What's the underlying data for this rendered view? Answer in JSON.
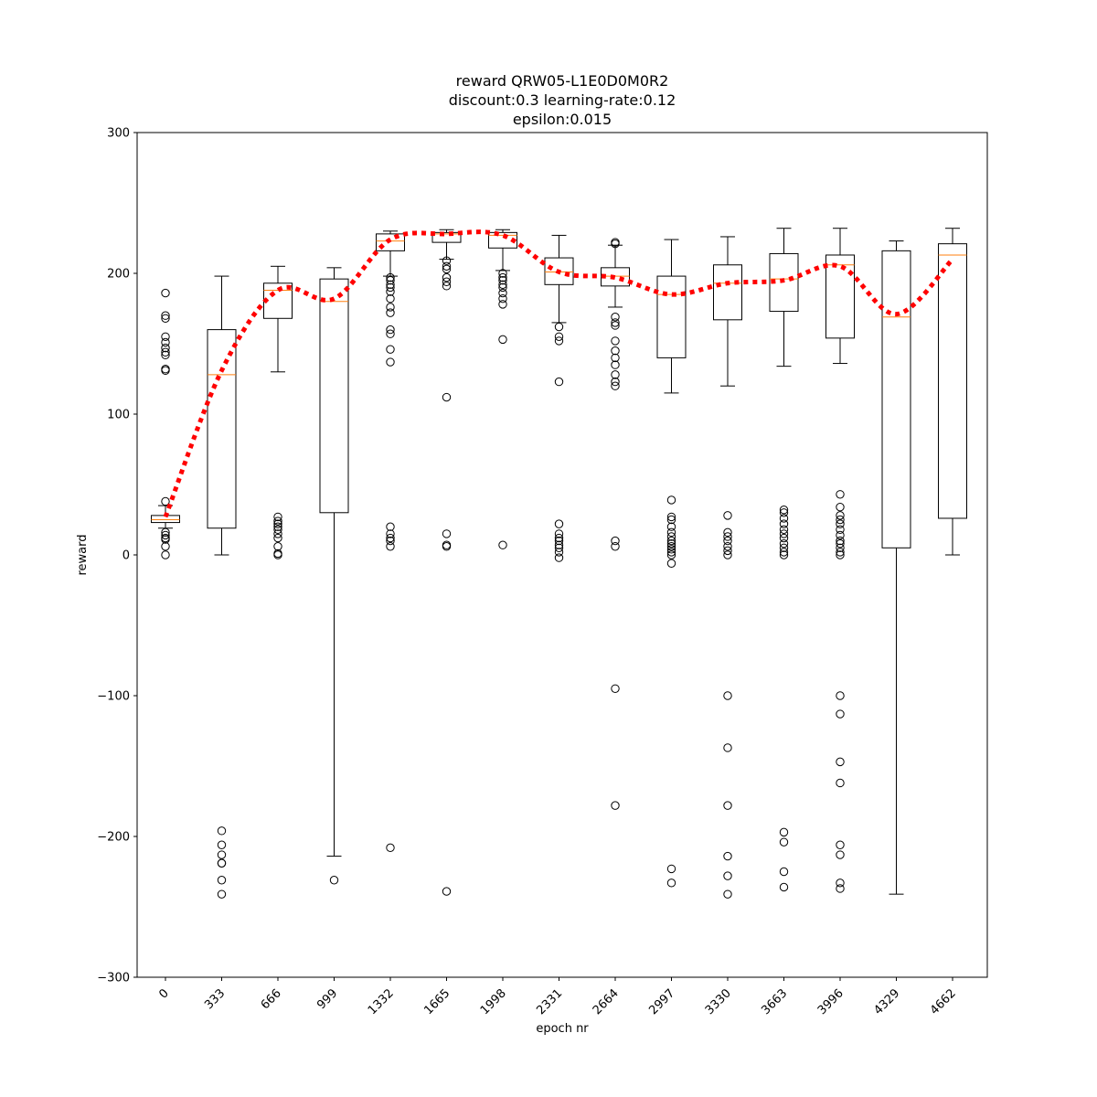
{
  "chart_data": {
    "type": "box",
    "title": [
      "reward QRW05-L1E0D0M0R2",
      "discount:0.3 learning-rate:0.12",
      "epsilon:0.015"
    ],
    "xlabel": "epoch nr",
    "ylabel": "reward",
    "ylim": [
      -300,
      300
    ],
    "yticks": [
      -300,
      -200,
      -100,
      0,
      100,
      200,
      300
    ],
    "yticklabels": [
      "−300",
      "−200",
      "−100",
      "0",
      "100",
      "200",
      "300"
    ],
    "categories": [
      "0",
      "333",
      "666",
      "999",
      "1332",
      "1665",
      "1998",
      "2331",
      "2664",
      "2997",
      "3330",
      "3663",
      "3996",
      "4329",
      "4662"
    ],
    "boxes": [
      {
        "whisker_low": 19,
        "q1": 23,
        "median": 25,
        "q3": 28,
        "whisker_high": 35,
        "outliers": [
          186,
          170,
          168,
          155,
          151,
          147,
          144,
          142,
          132,
          131,
          38,
          16,
          14,
          12,
          11,
          6,
          0
        ]
      },
      {
        "whisker_low": 0,
        "q1": 19,
        "median": 128,
        "q3": 160,
        "whisker_high": 198,
        "outliers": [
          -196,
          -206,
          -213,
          -219,
          -219,
          -231,
          -241
        ]
      },
      {
        "whisker_low": 130,
        "q1": 168,
        "median": 188,
        "q3": 193,
        "whisker_high": 205,
        "outliers": [
          27,
          24,
          22,
          20,
          18,
          15,
          12,
          6,
          1,
          0
        ]
      },
      {
        "whisker_low": -214,
        "q1": 30,
        "median": 180,
        "q3": 196,
        "whisker_high": 204,
        "outliers": [
          -231
        ]
      },
      {
        "whisker_low": 198,
        "q1": 216,
        "median": 223,
        "q3": 228,
        "whisker_high": 230,
        "outliers": [
          197,
          195,
          192,
          190,
          187,
          182,
          176,
          172,
          160,
          157,
          146,
          137,
          20,
          15,
          12,
          10,
          6,
          -208
        ]
      },
      {
        "whisker_low": 210,
        "q1": 222,
        "median": 228,
        "q3": 229,
        "whisker_high": 231,
        "outliers": [
          209,
          205,
          203,
          197,
          194,
          191,
          112,
          15,
          7,
          6,
          -239
        ]
      },
      {
        "whisker_low": 202,
        "q1": 218,
        "median": 227,
        "q3": 229,
        "whisker_high": 231,
        "outliers": [
          200,
          197,
          195,
          192,
          190,
          186,
          182,
          178,
          153,
          7
        ]
      },
      {
        "whisker_low": 165,
        "q1": 192,
        "median": 201,
        "q3": 211,
        "whisker_high": 227,
        "outliers": [
          162,
          155,
          152,
          123,
          22,
          15,
          12,
          10,
          7,
          5,
          2,
          -2
        ]
      },
      {
        "whisker_low": 176,
        "q1": 191,
        "median": 198,
        "q3": 204,
        "whisker_high": 220,
        "outliers": [
          222,
          221,
          169,
          165,
          163,
          152,
          145,
          140,
          135,
          128,
          123,
          120,
          10,
          6,
          -95,
          -178
        ]
      },
      {
        "whisker_low": 115,
        "q1": 140,
        "median": 185,
        "q3": 198,
        "whisker_high": 224,
        "outliers": [
          39,
          27,
          25,
          20,
          16,
          13,
          10,
          8,
          6,
          4,
          2,
          0,
          -6,
          -223,
          -233
        ]
      },
      {
        "whisker_low": 120,
        "q1": 167,
        "median": 193,
        "q3": 206,
        "whisker_high": 226,
        "outliers": [
          28,
          16,
          13,
          10,
          6,
          3,
          0,
          -100,
          -137,
          -178,
          -214,
          -228,
          -241
        ]
      },
      {
        "whisker_low": 134,
        "q1": 173,
        "median": 196,
        "q3": 214,
        "whisker_high": 232,
        "outliers": [
          32,
          30,
          26,
          22,
          18,
          15,
          12,
          8,
          5,
          2,
          0,
          -197,
          -204,
          -225,
          -236
        ]
      },
      {
        "whisker_low": 136,
        "q1": 154,
        "median": 206,
        "q3": 213,
        "whisker_high": 232,
        "outliers": [
          43,
          34,
          28,
          25,
          22,
          18,
          14,
          10,
          8,
          5,
          2,
          0,
          -100,
          -113,
          -147,
          -162,
          -206,
          -213,
          -233,
          -237
        ]
      },
      {
        "whisker_low": -241,
        "q1": 5,
        "median": 169,
        "q3": 216,
        "whisker_high": 223,
        "outliers": []
      },
      {
        "whisker_low": 0,
        "q1": 26,
        "median": 213,
        "q3": 221,
        "whisker_high": 232,
        "outliers": []
      }
    ],
    "mean_line": {
      "values": [
        27,
        131,
        188,
        182,
        224,
        228,
        227,
        201,
        197,
        185,
        193,
        195,
        205,
        171,
        210
      ],
      "color": "#ff0000",
      "style": "dotted"
    },
    "colors": {
      "box": "#000000",
      "median": "#ff7f0e",
      "mean": "#ff0000"
    }
  }
}
